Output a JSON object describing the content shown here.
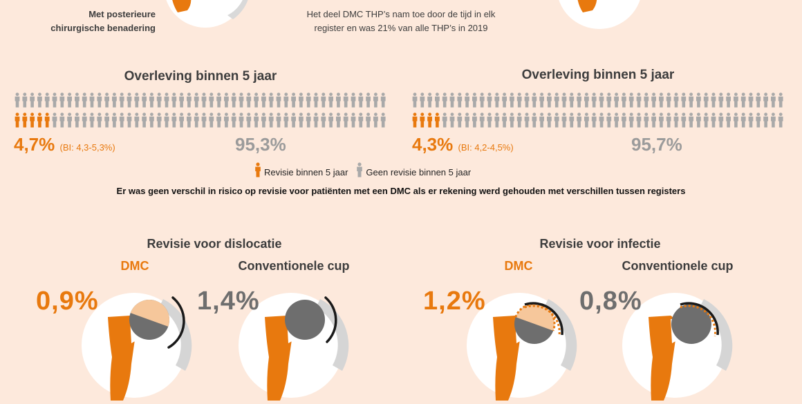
{
  "top": {
    "left_note_line1": "Met posterieure",
    "left_note_line2": "chirurgische benadering",
    "center_note_line1": "Het deel DMC THP’s nam toe door de tijd in elk",
    "center_note_line2": "register en was 21% van alle THP’s in 2019"
  },
  "survival": [
    {
      "title": "Overleving binnen 5 jaar",
      "revision_pct": "4,7%",
      "ci": "(BI: 4,3-5,3%)",
      "no_revision_pct": "95,3%",
      "revision_share": 0.047
    },
    {
      "title": "Overleving binnen 5 jaar",
      "revision_pct": "4,3%",
      "ci": "(BI: 4,2-4,5%)",
      "no_revision_pct": "95,7%",
      "revision_share": 0.043
    }
  ],
  "legend": {
    "revision": "Revisie binnen 5 jaar",
    "no_revision": "Geen revisie binnen 5 jaar"
  },
  "notice": "Er was geen verschil in risico op revisie voor patiënten met een DMC als er rekening werd gehouden met verschillen tussen registers",
  "revision_sections": [
    {
      "title": "Revisie voor dislocatie",
      "dmc_label": "DMC",
      "dmc_pct": "0,9%",
      "conv_label": "Conventionele cup",
      "conv_pct": "1,4%"
    },
    {
      "title": "Revisie voor infectie",
      "dmc_label": "DMC",
      "dmc_pct": "1,2%",
      "conv_label": "Conventionele cup",
      "conv_pct": "0,8%"
    }
  ],
  "colors": {
    "background": "#fde9dc",
    "orange": "#e8790e",
    "grey_person": "#a9a9a9",
    "dark_grey": "#6e6e6e",
    "light_orange": "#f6c79b"
  }
}
